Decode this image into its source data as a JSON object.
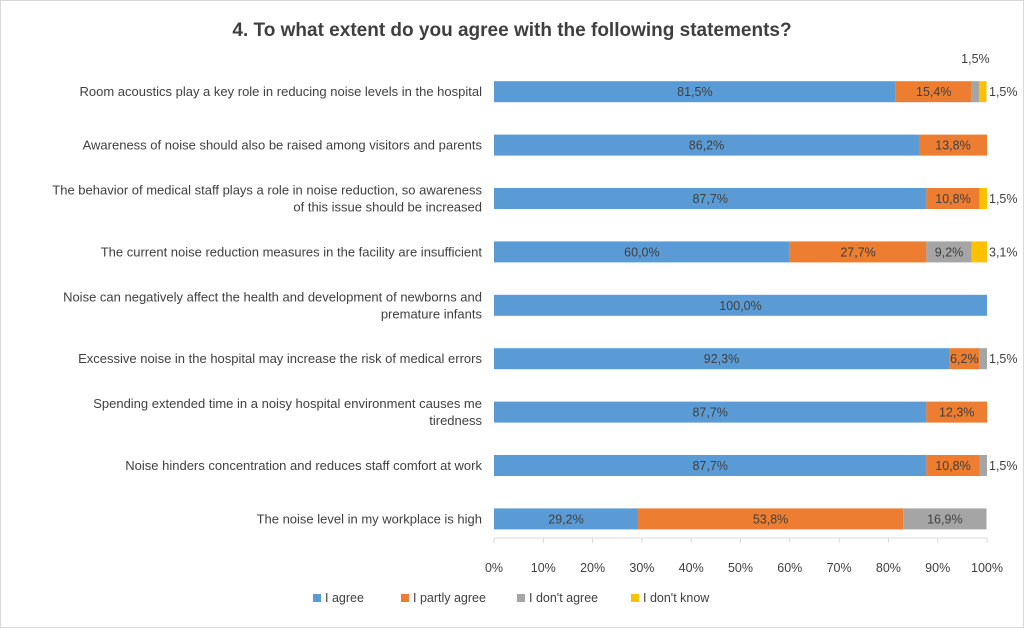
{
  "chart_data": {
    "type": "bar",
    "orientation": "horizontal",
    "stacked": "percent",
    "title": "4. To what extent do you agree with the following statements?",
    "xlabel": "",
    "ylabel": "",
    "xlim": [
      0,
      100
    ],
    "x_ticks": [
      "0%",
      "10%",
      "20%",
      "30%",
      "40%",
      "50%",
      "60%",
      "70%",
      "80%",
      "90%",
      "100%"
    ],
    "grid": false,
    "legend_position": "bottom",
    "categories": [
      "Room acoustics play a key role in reducing noise levels in the hospital",
      "Awareness of noise should also be raised among visitors and parents",
      "The behavior of medical staff plays a role in noise reduction, so awareness of this issue should be increased",
      "The current noise reduction measures in the facility are insufficient",
      "Noise can negatively affect the health and development of newborns and premature infants",
      "Excessive noise in the hospital may increase the risk of medical errors",
      "Spending extended time in a noisy hospital environment causes me tiredness",
      "Noise hinders concentration and reduces staff comfort at work",
      "The noise level in my workplace is high"
    ],
    "category_lines": [
      [
        "Room acoustics play a key role in reducing noise levels in the hospital"
      ],
      [
        "Awareness of noise should also be raised among visitors and parents"
      ],
      [
        "The behavior of medical staff plays a role in noise reduction, so awareness",
        "of this issue should be increased"
      ],
      [
        "The current noise reduction measures in the facility are insufficient"
      ],
      [
        "Noise can negatively affect the health and development of newborns and",
        "premature infants"
      ],
      [
        "Excessive noise in the hospital may increase the risk of medical errors"
      ],
      [
        "Spending extended time in a noisy hospital environment causes me",
        "tiredness"
      ],
      [
        "Noise hinders concentration and reduces staff comfort at work"
      ],
      [
        "The noise level in my workplace is high"
      ]
    ],
    "series": [
      {
        "name": "I agree",
        "color": "#5b9bd5",
        "values": [
          81.5,
          86.2,
          87.7,
          60.0,
          100.0,
          92.3,
          87.7,
          87.7,
          29.2
        ],
        "labels": [
          "81,5%",
          "86,2%",
          "87,7%",
          "60,0%",
          "100,0%",
          "92,3%",
          "87,7%",
          "87,7%",
          "29,2%"
        ]
      },
      {
        "name": "I partly agree",
        "color": "#ed7d31",
        "values": [
          15.4,
          13.8,
          10.8,
          27.7,
          0,
          6.2,
          12.3,
          10.8,
          53.8
        ],
        "labels": [
          "15,4%",
          "13,8%",
          "10,8%",
          "27,7%",
          "",
          "6,2%",
          "12,3%",
          "10,8%",
          "53,8%"
        ]
      },
      {
        "name": "I don't agree",
        "color": "#a5a5a5",
        "values": [
          1.5,
          0,
          0,
          9.2,
          0,
          1.5,
          0,
          1.5,
          16.9
        ],
        "labels": [
          "1,5%",
          "",
          "",
          "9,2%",
          "",
          "1,5%",
          "",
          "1,5%",
          "16,9%"
        ]
      },
      {
        "name": "I don't know",
        "color": "#ffc000",
        "values": [
          1.5,
          0,
          1.5,
          3.1,
          0,
          0,
          0,
          0,
          0
        ],
        "labels": [
          "1,5%",
          "",
          "1,5%",
          "3,1%",
          "",
          "",
          "",
          "",
          ""
        ]
      }
    ]
  }
}
